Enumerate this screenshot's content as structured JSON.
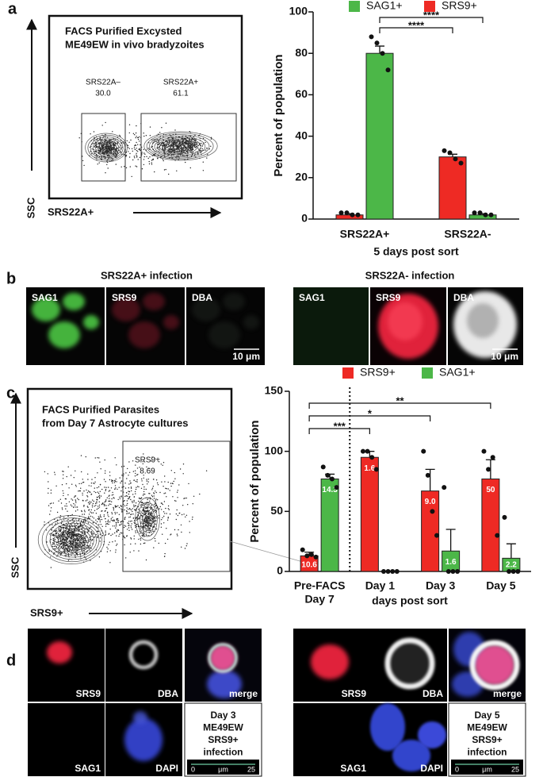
{
  "figure": {
    "panel_labels": [
      "a",
      "b",
      "c",
      "d"
    ],
    "flow_a": {
      "title": [
        "FACS Purified Excysted",
        "ME49EW in vivo bradyzoites"
      ],
      "gates": [
        {
          "name": "SRS22A–",
          "value": "30.0"
        },
        {
          "name": "SRS22A+",
          "value": "61.1"
        }
      ],
      "y_label": "SSC",
      "x_label": "SRS22A+"
    },
    "micro_b": [
      {
        "title": "SRS22A+ infection",
        "channels": [
          "SAG1",
          "SRS9",
          "DBA"
        ],
        "scale": "10 μm"
      },
      {
        "title": "SRS22A- infection",
        "channels": [
          "SAG1",
          "SRS9",
          "DBA"
        ],
        "scale": "10 μm"
      }
    ],
    "flow_c": {
      "title": [
        "FACS Purified Parasites",
        "from Day 7 Astrocyte cultures"
      ],
      "gates": [
        {
          "name": "SRS9+",
          "value": "8.69"
        }
      ],
      "y_label": "SSC",
      "x_label": "SRS9+"
    },
    "micro_d": [
      {
        "channels": [
          "SRS9",
          "DBA",
          "merge",
          "SAG1",
          "DAPI"
        ],
        "caption": [
          "Day 3",
          "ME49EW",
          "SRS9+",
          "infection"
        ],
        "scale": [
          "0",
          "μm",
          "25"
        ]
      },
      {
        "channels": [
          "SRS9",
          "DBA",
          "merge",
          "SAG1",
          "DAPI"
        ],
        "caption": [
          "Day 5",
          "ME49EW",
          "SRS9+",
          "infection"
        ],
        "scale": [
          "0",
          "μm",
          "25"
        ]
      }
    ]
  },
  "chart_data": [
    {
      "type": "bar",
      "y_label": "Percent of population",
      "x_label": "5 days post sort",
      "categories": [
        "SRS22A+",
        "SRS22A-"
      ],
      "series": [
        {
          "name": "SRS9+",
          "color": "#ee2a24",
          "values": [
            2,
            30
          ],
          "errors": [
            0.6,
            1.3
          ],
          "points": [
            [
              3,
              3,
              2,
              2
            ],
            [
              33,
              32,
              29,
              27
            ]
          ]
        },
        {
          "name": "SAG1+",
          "color": "#4cb748",
          "values": [
            80,
            2
          ],
          "errors": [
            3.5,
            0.6
          ],
          "points": [
            [
              88,
              85,
              80,
              72
            ],
            [
              3,
              3,
              2,
              2
            ]
          ]
        }
      ],
      "ylim": [
        0,
        100
      ],
      "yticks": [
        0,
        20,
        40,
        60,
        80,
        100
      ],
      "brackets": [
        {
          "label": "****",
          "from": [
            0,
            1
          ],
          "to": [
            1,
            0
          ]
        },
        {
          "label": "****",
          "from": [
            0,
            1
          ],
          "to": [
            1,
            1
          ]
        }
      ]
    },
    {
      "type": "bar",
      "y_label": "Percent of population",
      "x_label": "days post sort",
      "categories": [
        [
          "Pre-FACS",
          "Day 7"
        ],
        [
          "Day 1"
        ],
        [
          "Day 3"
        ],
        [
          "Day 5"
        ]
      ],
      "series": [
        {
          "name": "SRS9+",
          "color": "#ee2a24",
          "values": [
            13,
            95,
            67,
            77
          ],
          "errors": [
            3,
            5,
            18,
            16
          ],
          "points": [
            [
              18,
              13,
              14,
              12
            ],
            [
              100,
              100,
              95,
              85
            ],
            [
              100,
              80,
              50,
              30
            ],
            [
              100,
              85,
              95,
              30
            ]
          ],
          "inner_labels": [
            "10.6",
            "1.6",
            "9.0",
            "50"
          ]
        },
        {
          "name": "SAG1+",
          "color": "#4cb748",
          "values": [
            77,
            0,
            17,
            11
          ],
          "errors": [
            4,
            0,
            18,
            12
          ],
          "points": [
            [
              87,
              80,
              77,
              70
            ],
            [
              0,
              0,
              0,
              0
            ],
            [
              70,
              0,
              0,
              0
            ],
            [
              45,
              0,
              0,
              0
            ]
          ],
          "inner_labels": [
            "14.3",
            null,
            "1.6",
            "2.2"
          ]
        }
      ],
      "ylim": [
        0,
        150
      ],
      "yticks": [
        0,
        50,
        100,
        150
      ],
      "brackets": [
        {
          "label": "***",
          "from": [
            0,
            0
          ],
          "to": [
            1,
            0
          ]
        },
        {
          "label": "*",
          "from": [
            0,
            0
          ],
          "to": [
            2,
            0
          ]
        },
        {
          "label": "**",
          "from": [
            0,
            0
          ],
          "to": [
            3,
            0
          ]
        }
      ]
    }
  ]
}
